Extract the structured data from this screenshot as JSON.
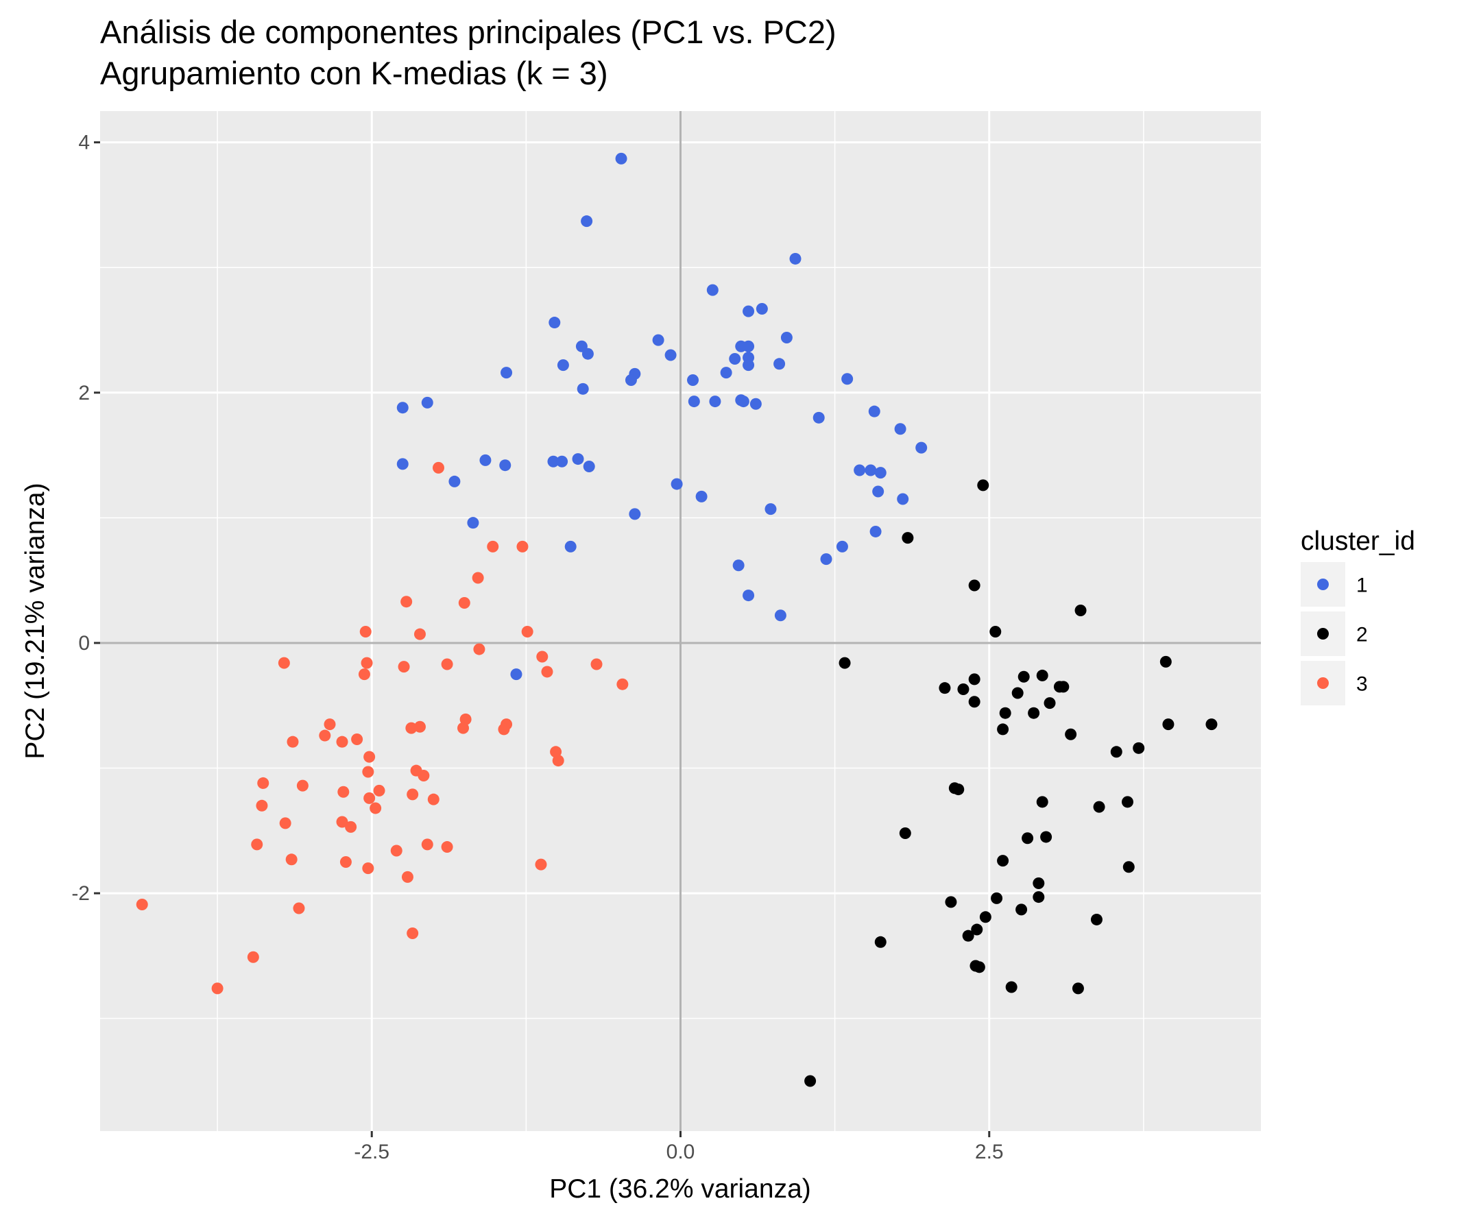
{
  "chart_data": {
    "type": "scatter",
    "title": "Análisis de componentes principales (PC1 vs. PC2)",
    "subtitle": "Agrupamiento con K-medias (k = 3)",
    "xlabel": "PC1 (36.2% varianza)",
    "ylabel": "PC2 (19.21% varianza)",
    "xlim": [
      -4.7,
      4.7
    ],
    "ylim": [
      -3.9,
      4.25
    ],
    "x_ticks": [
      -2.5,
      0.0,
      2.5
    ],
    "x_tick_labels": [
      "-2.5",
      "0.0",
      "2.5"
    ],
    "y_ticks": [
      -2,
      0,
      2,
      4
    ],
    "y_tick_labels": [
      "-2",
      "0",
      "2",
      "4"
    ],
    "grid": true,
    "reference_lines": {
      "x": 0,
      "y": 0
    },
    "legend": {
      "title": "cluster_id",
      "position": "right"
    },
    "series": [
      {
        "name": "1",
        "color": "#4169E1",
        "points": [
          [
            -0.48,
            3.87
          ],
          [
            -0.76,
            3.37
          ],
          [
            0.93,
            3.07
          ],
          [
            0.26,
            2.82
          ],
          [
            0.66,
            2.67
          ],
          [
            0.55,
            2.65
          ],
          [
            -1.02,
            2.56
          ],
          [
            -0.18,
            2.42
          ],
          [
            0.86,
            2.44
          ],
          [
            -0.8,
            2.37
          ],
          [
            0.49,
            2.37
          ],
          [
            0.55,
            2.37
          ],
          [
            -0.75,
            2.31
          ],
          [
            -0.08,
            2.3
          ],
          [
            0.44,
            2.27
          ],
          [
            0.55,
            2.28
          ],
          [
            -0.95,
            2.22
          ],
          [
            0.55,
            2.22
          ],
          [
            0.8,
            2.23
          ],
          [
            -1.41,
            2.16
          ],
          [
            -0.37,
            2.15
          ],
          [
            0.37,
            2.16
          ],
          [
            -0.4,
            2.1
          ],
          [
            0.1,
            2.1
          ],
          [
            1.35,
            2.11
          ],
          [
            -0.79,
            2.03
          ],
          [
            -2.25,
            1.88
          ],
          [
            -2.05,
            1.92
          ],
          [
            0.11,
            1.93
          ],
          [
            0.28,
            1.93
          ],
          [
            0.49,
            1.94
          ],
          [
            0.51,
            1.93
          ],
          [
            0.61,
            1.91
          ],
          [
            1.57,
            1.85
          ],
          [
            1.12,
            1.8
          ],
          [
            1.78,
            1.71
          ],
          [
            1.95,
            1.56
          ],
          [
            -0.83,
            1.47
          ],
          [
            -1.58,
            1.46
          ],
          [
            -1.03,
            1.45
          ],
          [
            -0.96,
            1.45
          ],
          [
            -2.25,
            1.43
          ],
          [
            -1.42,
            1.42
          ],
          [
            -0.74,
            1.41
          ],
          [
            1.45,
            1.38
          ],
          [
            1.54,
            1.38
          ],
          [
            1.62,
            1.36
          ],
          [
            -1.83,
            1.29
          ],
          [
            -0.03,
            1.27
          ],
          [
            1.6,
            1.21
          ],
          [
            0.17,
            1.17
          ],
          [
            1.8,
            1.15
          ],
          [
            0.73,
            1.07
          ],
          [
            -0.37,
            1.03
          ],
          [
            -1.68,
            0.96
          ],
          [
            1.58,
            0.89
          ],
          [
            -0.89,
            0.77
          ],
          [
            1.31,
            0.77
          ],
          [
            1.18,
            0.67
          ],
          [
            0.47,
            0.62
          ],
          [
            0.55,
            0.38
          ],
          [
            0.81,
            0.22
          ],
          [
            -1.33,
            -0.25
          ]
        ]
      },
      {
        "name": "2",
        "color": "#000000",
        "points": [
          [
            2.45,
            1.26
          ],
          [
            1.84,
            0.84
          ],
          [
            2.38,
            0.46
          ],
          [
            3.24,
            0.26
          ],
          [
            2.55,
            0.09
          ],
          [
            1.33,
            -0.16
          ],
          [
            3.93,
            -0.15
          ],
          [
            2.38,
            -0.29
          ],
          [
            2.78,
            -0.27
          ],
          [
            2.93,
            -0.26
          ],
          [
            2.14,
            -0.36
          ],
          [
            2.29,
            -0.37
          ],
          [
            3.07,
            -0.35
          ],
          [
            3.1,
            -0.35
          ],
          [
            2.73,
            -0.4
          ],
          [
            2.38,
            -0.47
          ],
          [
            2.99,
            -0.48
          ],
          [
            2.63,
            -0.56
          ],
          [
            2.86,
            -0.56
          ],
          [
            3.95,
            -0.65
          ],
          [
            4.3,
            -0.65
          ],
          [
            2.61,
            -0.69
          ],
          [
            3.16,
            -0.73
          ],
          [
            3.71,
            -0.84
          ],
          [
            3.53,
            -0.87
          ],
          [
            2.22,
            -1.16
          ],
          [
            2.25,
            -1.17
          ],
          [
            2.93,
            -1.27
          ],
          [
            3.62,
            -1.27
          ],
          [
            3.39,
            -1.31
          ],
          [
            1.82,
            -1.52
          ],
          [
            2.96,
            -1.55
          ],
          [
            2.81,
            -1.56
          ],
          [
            2.61,
            -1.74
          ],
          [
            3.63,
            -1.79
          ],
          [
            2.9,
            -1.92
          ],
          [
            2.56,
            -2.04
          ],
          [
            2.9,
            -2.03
          ],
          [
            2.19,
            -2.07
          ],
          [
            2.76,
            -2.13
          ],
          [
            2.47,
            -2.19
          ],
          [
            3.37,
            -2.21
          ],
          [
            2.4,
            -2.29
          ],
          [
            2.33,
            -2.34
          ],
          [
            1.62,
            -2.39
          ],
          [
            2.39,
            -2.58
          ],
          [
            2.42,
            -2.59
          ],
          [
            2.68,
            -2.75
          ],
          [
            3.22,
            -2.76
          ],
          [
            1.05,
            -3.5
          ]
        ]
      },
      {
        "name": "3",
        "color": "#FF6347",
        "points": [
          [
            -1.96,
            1.4
          ],
          [
            -1.52,
            0.77
          ],
          [
            -1.28,
            0.77
          ],
          [
            -1.64,
            0.52
          ],
          [
            -2.22,
            0.33
          ],
          [
            -1.75,
            0.32
          ],
          [
            -2.55,
            0.09
          ],
          [
            -1.24,
            0.09
          ],
          [
            -2.11,
            0.07
          ],
          [
            -1.63,
            -0.05
          ],
          [
            -1.12,
            -0.11
          ],
          [
            -3.21,
            -0.16
          ],
          [
            -2.54,
            -0.16
          ],
          [
            -2.24,
            -0.19
          ],
          [
            -1.89,
            -0.17
          ],
          [
            -0.68,
            -0.17
          ],
          [
            -2.56,
            -0.25
          ],
          [
            -1.08,
            -0.23
          ],
          [
            -0.47,
            -0.33
          ],
          [
            -1.74,
            -0.61
          ],
          [
            -2.84,
            -0.65
          ],
          [
            -1.41,
            -0.65
          ],
          [
            -2.11,
            -0.67
          ],
          [
            -2.18,
            -0.68
          ],
          [
            -1.76,
            -0.68
          ],
          [
            -1.43,
            -0.69
          ],
          [
            -2.88,
            -0.74
          ],
          [
            -2.62,
            -0.77
          ],
          [
            -3.14,
            -0.79
          ],
          [
            -2.74,
            -0.79
          ],
          [
            -1.01,
            -0.87
          ],
          [
            -2.52,
            -0.91
          ],
          [
            -0.99,
            -0.94
          ],
          [
            -2.14,
            -1.02
          ],
          [
            -2.53,
            -1.03
          ],
          [
            -2.08,
            -1.06
          ],
          [
            -3.38,
            -1.12
          ],
          [
            -3.06,
            -1.14
          ],
          [
            -2.73,
            -1.19
          ],
          [
            -2.44,
            -1.18
          ],
          [
            -2.17,
            -1.21
          ],
          [
            -2.0,
            -1.25
          ],
          [
            -2.52,
            -1.24
          ],
          [
            -3.39,
            -1.3
          ],
          [
            -2.47,
            -1.32
          ],
          [
            -3.2,
            -1.44
          ],
          [
            -2.74,
            -1.43
          ],
          [
            -2.67,
            -1.47
          ],
          [
            -3.43,
            -1.61
          ],
          [
            -2.05,
            -1.61
          ],
          [
            -1.89,
            -1.63
          ],
          [
            -2.3,
            -1.66
          ],
          [
            -3.15,
            -1.73
          ],
          [
            -2.71,
            -1.75
          ],
          [
            -1.13,
            -1.77
          ],
          [
            -2.53,
            -1.8
          ],
          [
            -2.21,
            -1.87
          ],
          [
            -4.36,
            -2.09
          ],
          [
            -3.09,
            -2.12
          ],
          [
            -2.17,
            -2.32
          ],
          [
            -3.46,
            -2.51
          ],
          [
            -3.75,
            -2.76
          ]
        ]
      }
    ]
  }
}
